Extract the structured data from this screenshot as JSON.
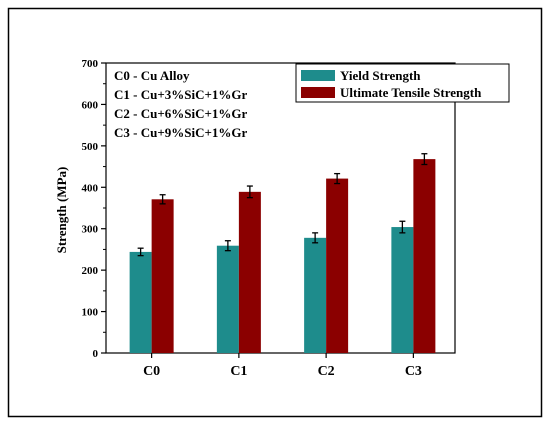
{
  "chart_data": {
    "type": "bar",
    "categories": [
      "C0",
      "C1",
      "C2",
      "C3"
    ],
    "series": [
      {
        "name": "Yield Strength",
        "color": "#1e8c8c",
        "values": [
          244,
          259,
          278,
          304
        ],
        "errors": [
          9,
          12,
          12,
          14
        ]
      },
      {
        "name": "Ultimate Tensile Strength",
        "color": "#8b0000",
        "values": [
          371,
          389,
          421,
          468
        ],
        "errors": [
          11,
          14,
          12,
          13
        ]
      }
    ],
    "ylabel": "Strength (MPa)",
    "xlabel": "",
    "title": "",
    "ylim": [
      0,
      700
    ],
    "yticks": [
      0,
      100,
      200,
      300,
      400,
      500,
      600,
      700
    ],
    "legend_position": "top-right",
    "grid": false,
    "annotations": [
      "C0 - Cu Alloy",
      "C1 - Cu+3%SiC+1%Gr",
      "C2 - Cu+6%SiC+1%Gr",
      "C3 - Cu+9%SiC+1%Gr"
    ]
  }
}
